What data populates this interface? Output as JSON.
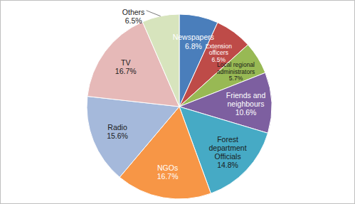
{
  "chart_data": {
    "type": "pie",
    "categories": [
      "Newspapers",
      "Extension officers",
      "Local regional administrators",
      "Friends and neighbours",
      "Forest department Officials",
      "NGOs",
      "Radio",
      "TV",
      "Others"
    ],
    "values": [
      6.8,
      6.5,
      5.7,
      10.6,
      14.8,
      16.7,
      15.6,
      16.7,
      6.5
    ],
    "value_labels": [
      "6.8%",
      "6.5%",
      "5.7%",
      "10.6%",
      "14.8%",
      "16.7%",
      "15.6%",
      "16.7%",
      "6.5%"
    ],
    "colors": [
      "#4a7ebb",
      "#be4b48",
      "#98b954",
      "#7d5fa0",
      "#46aac5",
      "#f79646",
      "#a5b9db",
      "#e6b9b8",
      "#d7e4bd"
    ],
    "data_labels": true
  }
}
